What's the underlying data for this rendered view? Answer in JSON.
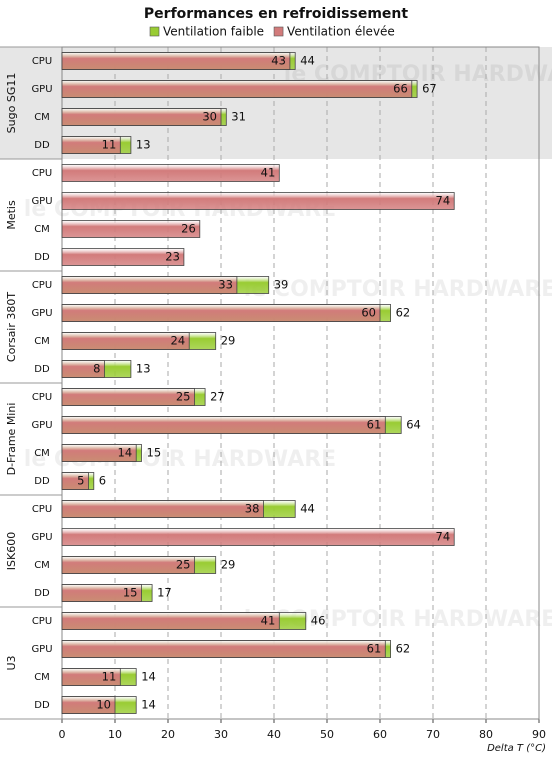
{
  "chart_data": {
    "type": "bar",
    "orientation": "horizontal",
    "title": "Performances en refroidissement",
    "watermark": "le COMPTOIR HARDWARE",
    "x_label": "Delta T (°C)",
    "highlight": "Sugo SG11",
    "groups": [
      {
        "name": "Sugo SG11",
        "categories": [
          "CPU",
          "GPU",
          "CM",
          "DD"
        ]
      },
      {
        "name": "Metis",
        "categories": [
          "CPU",
          "GPU",
          "CM",
          "DD"
        ]
      },
      {
        "name": "Corsair 380T",
        "categories": [
          "CPU",
          "GPU",
          "CM",
          "DD"
        ]
      },
      {
        "name": "D-Frame Mini",
        "categories": [
          "CPU",
          "GPU",
          "CM",
          "DD"
        ]
      },
      {
        "name": "ISK600",
        "categories": [
          "CPU",
          "GPU",
          "CM",
          "DD"
        ]
      },
      {
        "name": "U3",
        "categories": [
          "CPU",
          "GPU",
          "CM",
          "DD"
        ]
      }
    ],
    "series": [
      {
        "name": "Ventilation faible",
        "color": "#99cc33",
        "values": [
          44,
          67,
          31,
          13,
          null,
          null,
          null,
          null,
          39,
          62,
          29,
          13,
          27,
          64,
          15,
          6,
          44,
          null,
          29,
          17,
          46,
          62,
          14,
          14
        ]
      },
      {
        "name": "Ventilation élevée",
        "color": "#d27b7b",
        "values": [
          43,
          66,
          30,
          11,
          41,
          74,
          26,
          23,
          33,
          60,
          24,
          8,
          25,
          61,
          14,
          5,
          38,
          74,
          25,
          15,
          41,
          61,
          11,
          10
        ]
      }
    ],
    "xlim": [
      0,
      90
    ],
    "xticks": [
      0,
      10,
      20,
      30,
      40,
      50,
      60,
      70,
      80,
      90
    ],
    "grid": true,
    "legend": "top"
  }
}
